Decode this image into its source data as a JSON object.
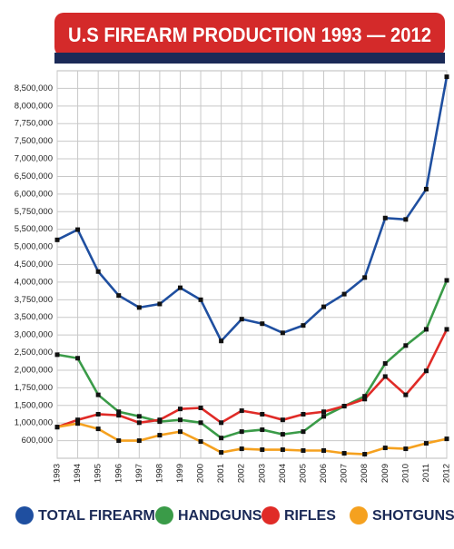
{
  "chart_data": {
    "type": "line",
    "title": "U.S FIREARM PRODUCTION 1993 — 2012",
    "categories": [
      "1993",
      "1994",
      "1995",
      "1996",
      "1997",
      "1998",
      "1999",
      "2000",
      "2001",
      "2002",
      "2003",
      "2004",
      "2005",
      "2006",
      "2007",
      "2008",
      "2009",
      "2010",
      "2011",
      "2012"
    ],
    "series": [
      {
        "name": "TOTAL FIREARMS",
        "color": "#1f4fa0",
        "values": [
          5200000,
          5490000,
          4300000,
          3810000,
          3640000,
          3690000,
          3920000,
          3750000,
          2830000,
          3450000,
          3320000,
          3060000,
          3270000,
          3650000,
          3830000,
          4130000,
          5660000,
          5640000,
          6140000,
          8830000
        ]
      },
      {
        "name": "HANDGUNS",
        "color": "#3a9b48",
        "values": [
          2440000,
          2340000,
          1650000,
          1320000,
          1190000,
          1040000,
          1090000,
          1010000,
          660000,
          805000,
          848000,
          744000,
          805000,
          1190000,
          1480000,
          1630000,
          2190000,
          2700000,
          3160000,
          4050000
        ]
      },
      {
        "name": "RIFLES",
        "color": "#e02b27",
        "values": [
          908000,
          1090000,
          1250000,
          1220000,
          1010000,
          1090000,
          1400000,
          1430000,
          1010000,
          1350000,
          1250000,
          1090000,
          1250000,
          1320000,
          1480000,
          1590000,
          1910000,
          1650000,
          1990000,
          3160000
        ]
      },
      {
        "name": "SHOTGUNS",
        "color": "#f5a11f",
        "values": [
          908000,
          990000,
          868000,
          600000,
          600000,
          724000,
          805000,
          580000,
          333000,
          415000,
          395000,
          395000,
          375000,
          375000,
          313000,
          292000,
          436000,
          415000,
          539000,
          641000
        ]
      }
    ],
    "ylim": [
      200000,
      9000000
    ],
    "yticks": [
      {
        "value": 600000,
        "label": "600,000"
      },
      {
        "value": 1000000,
        "label": "1,000,000"
      },
      {
        "value": 1500000,
        "label": "1,500,000"
      },
      {
        "value": 1750000,
        "label": "1,750,000"
      },
      {
        "value": 2000000,
        "label": "2,000,000"
      },
      {
        "value": 2500000,
        "label": "2,500,000"
      },
      {
        "value": 3000000,
        "label": "3,000,000"
      },
      {
        "value": 3500000,
        "label": "3,500,000"
      },
      {
        "value": 3750000,
        "label": "3,750,000"
      },
      {
        "value": 4000000,
        "label": "4,000,000"
      },
      {
        "value": 4500000,
        "label": "4,500,000"
      },
      {
        "value": 5000000,
        "label": "5,000,000"
      },
      {
        "value": 5500000,
        "label": "5,500,000"
      },
      {
        "value": 5750000,
        "label": "5,750,000"
      },
      {
        "value": 6000000,
        "label": "6,000,000"
      },
      {
        "value": 6500000,
        "label": "6,500,000"
      },
      {
        "value": 7000000,
        "label": "7,000,000"
      },
      {
        "value": 7500000,
        "label": "7,500,000"
      },
      {
        "value": 7750000,
        "label": "7,750,000"
      },
      {
        "value": 8000000,
        "label": "8,000,000"
      },
      {
        "value": 8500000,
        "label": "8,500,000"
      }
    ],
    "grid": true
  }
}
